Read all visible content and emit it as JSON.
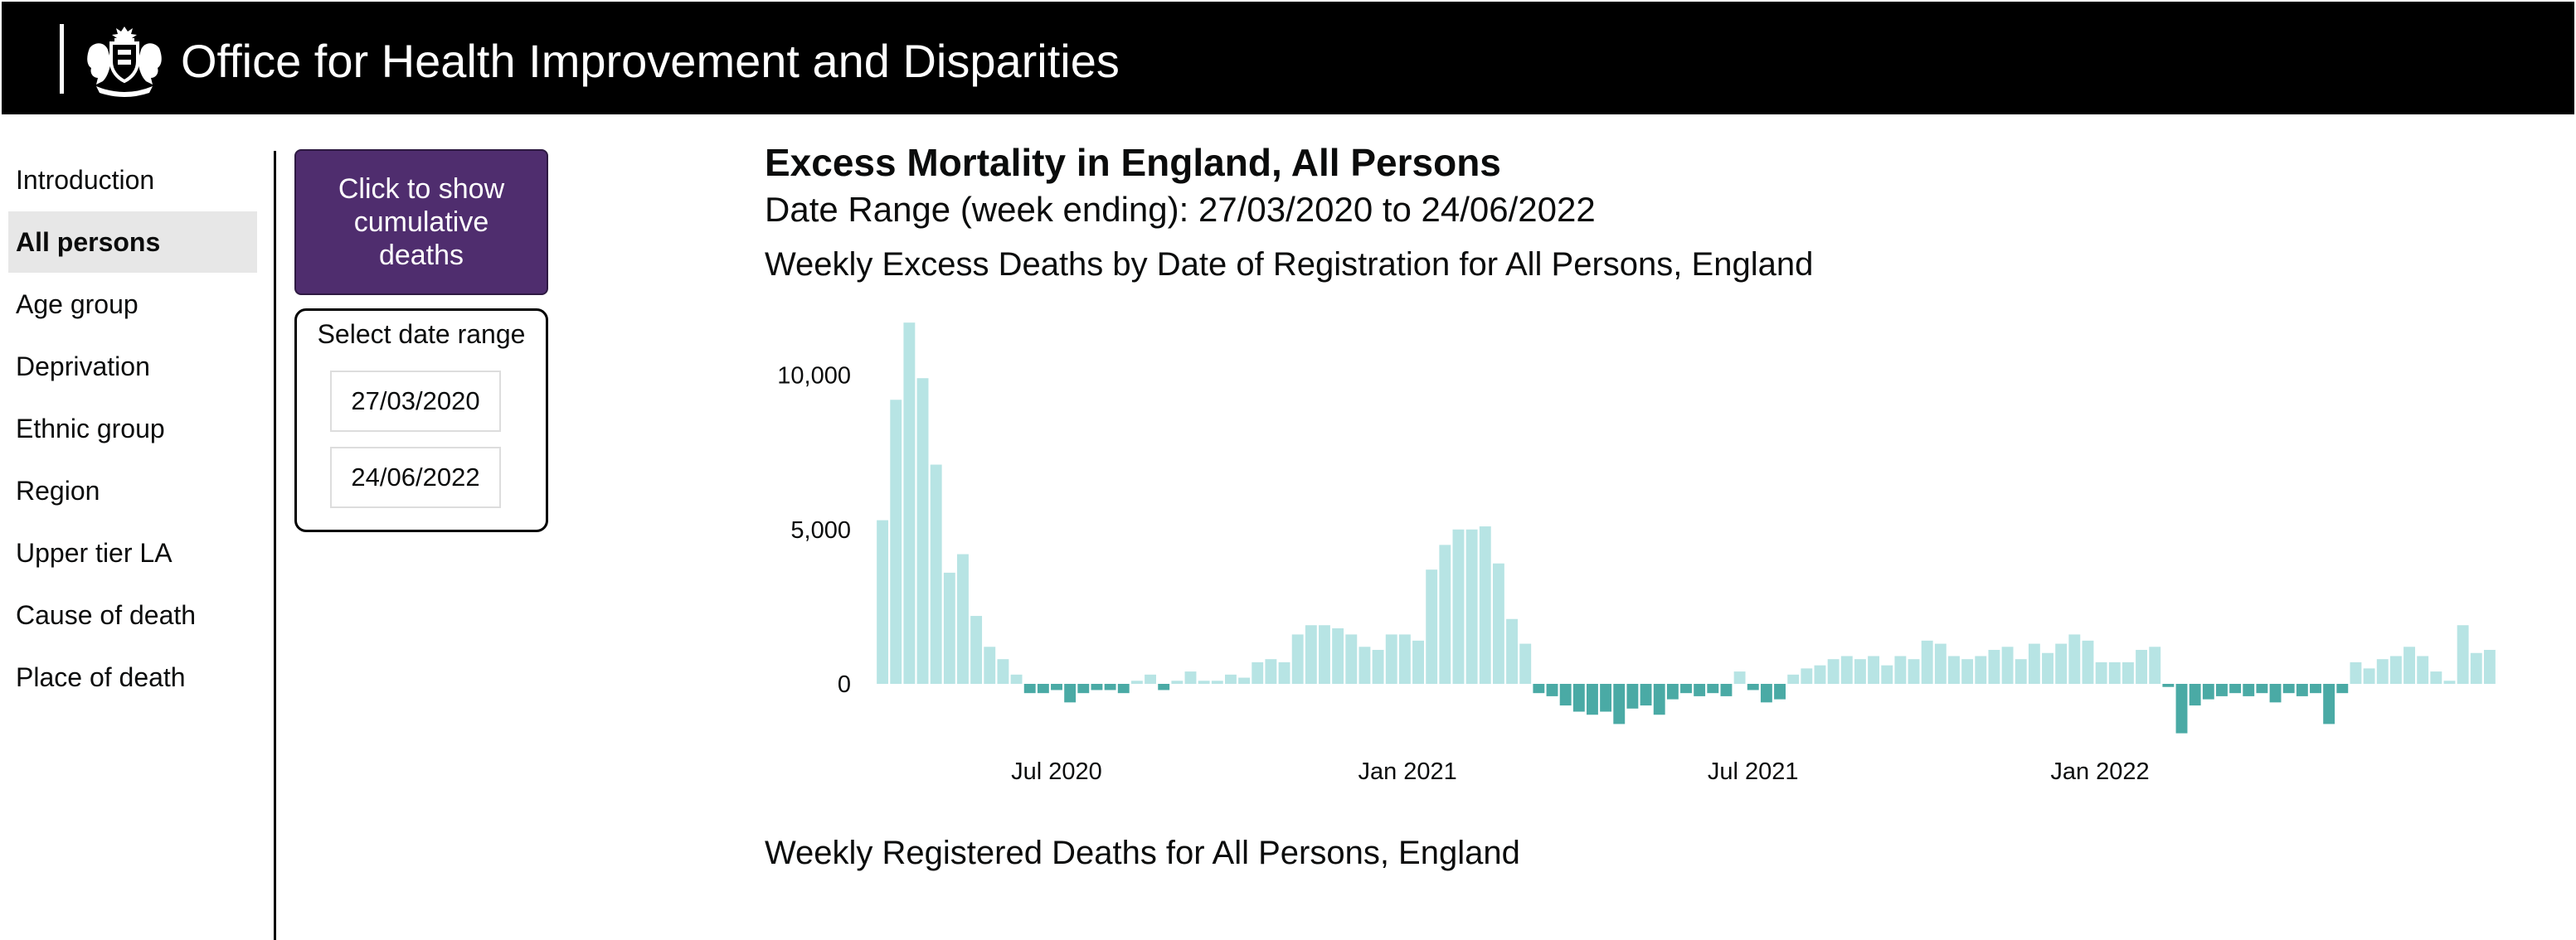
{
  "header": {
    "title": "Office for Health Improvement and Disparities"
  },
  "nav": {
    "items": [
      {
        "label": "Introduction",
        "active": false
      },
      {
        "label": "All persons",
        "active": true
      },
      {
        "label": "Age group",
        "active": false
      },
      {
        "label": "Deprivation",
        "active": false
      },
      {
        "label": "Ethnic group",
        "active": false
      },
      {
        "label": "Region",
        "active": false
      },
      {
        "label": "Upper tier LA",
        "active": false
      },
      {
        "label": "Cause of death",
        "active": false
      },
      {
        "label": "Place of death",
        "active": false
      }
    ]
  },
  "controls": {
    "cumulative_button": "Click to show cumulative deaths",
    "date_range_label": "Select date range",
    "date_start": "27/03/2020",
    "date_end": "24/06/2022"
  },
  "main": {
    "title": "Excess Mortality in England, All Persons",
    "date_range": "Date Range (week ending): 27/03/2020 to 24/06/2022",
    "chart1_title": "Weekly Excess Deaths by Date of Registration for All Persons, England",
    "chart2_title": "Weekly Registered Deaths for All Persons, England"
  },
  "colors": {
    "positive_bar": "#b7e4e4",
    "negative_bar": "#4aaaa5",
    "button_bg": "#4f2d6e"
  },
  "chart_data": {
    "type": "bar",
    "title": "Weekly Excess Deaths by Date of Registration for All Persons, England",
    "xlabel": "",
    "ylabel": "",
    "ylim": [
      -700,
      11700
    ],
    "yticks": [
      0,
      5000,
      10000
    ],
    "ytick_labels": [
      "0",
      "5,000",
      "10,000"
    ],
    "x_start": "27/03/2020",
    "x_end": "24/06/2022",
    "xtick_labels": [
      {
        "label": "Jul 2020",
        "week_index": 13.5
      },
      {
        "label": "Jan 2021",
        "week_index": 39.7
      },
      {
        "label": "Jul 2021",
        "week_index": 65.5
      },
      {
        "label": "Jan 2022",
        "week_index": 91.4
      }
    ],
    "series": [
      {
        "name": "Weekly excess deaths",
        "values": [
          5300,
          9200,
          11700,
          9900,
          7100,
          3600,
          4200,
          2200,
          1200,
          800,
          300,
          -300,
          -300,
          -200,
          -600,
          -300,
          -200,
          -200,
          -300,
          100,
          300,
          -200,
          100,
          400,
          100,
          100,
          300,
          200,
          700,
          800,
          700,
          1600,
          1900,
          1900,
          1800,
          1600,
          1200,
          1100,
          1600,
          1600,
          1400,
          3700,
          4500,
          5000,
          5000,
          5100,
          3900,
          2100,
          1300,
          -300,
          -400,
          -700,
          -900,
          -1000,
          -900,
          -1300,
          -800,
          -700,
          -1000,
          -500,
          -300,
          -400,
          -300,
          -400,
          400,
          -200,
          -600,
          -500,
          300,
          500,
          600,
          800,
          900,
          800,
          900,
          600,
          900,
          800,
          1400,
          1300,
          900,
          800,
          900,
          1100,
          1200,
          800,
          1300,
          1000,
          1300,
          1600,
          1400,
          700,
          700,
          700,
          1100,
          1200,
          -100,
          -1600,
          -700,
          -500,
          -400,
          -300,
          -400,
          -300,
          -600,
          -300,
          -400,
          -300,
          -1300,
          -300,
          700,
          500,
          800,
          900,
          1200,
          900,
          400,
          100,
          1900,
          1000,
          1100
        ]
      }
    ]
  }
}
